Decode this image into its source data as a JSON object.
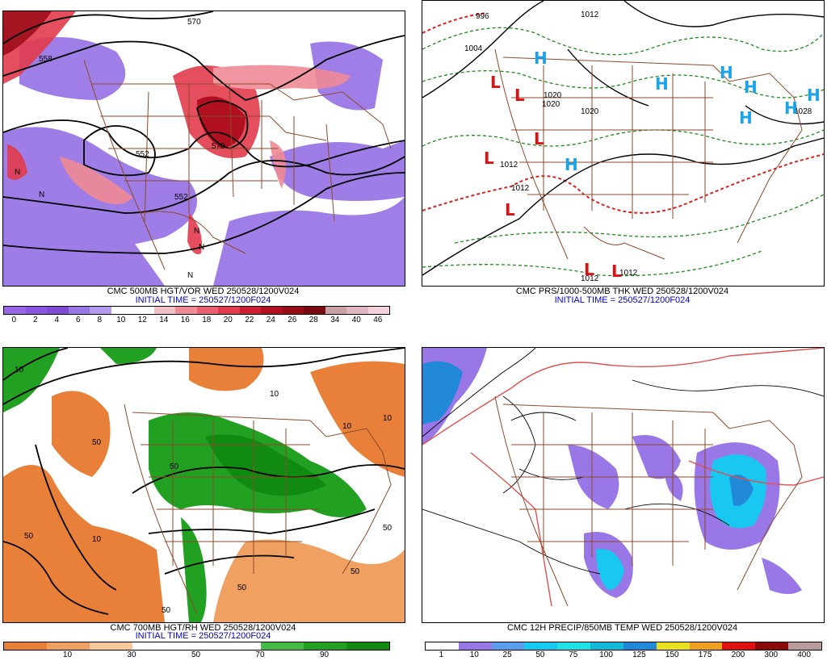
{
  "panels": {
    "top_left": {
      "title": "CMC 500MB HGT/VOR WED 250528/1200V024",
      "init": "INITIAL TIME = 250527/1200F024",
      "contour_labels": [
        "570",
        "558",
        "552",
        "552",
        "570",
        "570"
      ],
      "markers": [
        "N",
        "N",
        "N",
        "N",
        "N"
      ],
      "legend": {
        "ticks": [
          "0",
          "2",
          "4",
          "6",
          "8",
          "10",
          "12",
          "14",
          "16",
          "18",
          "20",
          "22",
          "24",
          "26",
          "28",
          "34",
          "40",
          "46"
        ],
        "colors": [
          "#9a66e8",
          "#8a55de",
          "#7f4bd4",
          "#9a77e6",
          "#b49bef",
          "#ffffff",
          "#ffffff",
          "#f4c0c8",
          "#f08a96",
          "#ec5f6f",
          "#e23b4c",
          "#cc1f31",
          "#b0101f",
          "#9a0c16",
          "#7a0a10",
          "#c9a0a6",
          "#e2b8c0",
          "#f4d0d8"
        ]
      }
    },
    "top_right": {
      "title": "CMC PRS/1000-500MB THK WED 250528/1200V024",
      "init": "INITIAL TIME = 250527/1200F024",
      "isobar_labels": [
        "996",
        "1012",
        "1004",
        "1020",
        "1020",
        "1020",
        "1012",
        "1028",
        "1012",
        "1012",
        "1012"
      ],
      "highs": [
        "H",
        "H",
        "H",
        "H",
        "H",
        "H",
        "H",
        "H"
      ],
      "lows": [
        "L",
        "L",
        "L",
        "L",
        "L",
        "L",
        "L"
      ]
    },
    "bottom_left": {
      "title": "CMC 700MB HGT/RH WED 250528/1200V024",
      "init": "INITIAL TIME = 250527/1200F024",
      "rh_labels": [
        "10",
        "50",
        "50",
        "10",
        "50",
        "10",
        "50",
        "10",
        "50",
        "50",
        "50",
        "10"
      ],
      "legend": {
        "ticks": [
          "10",
          "30",
          "50",
          "70",
          "90"
        ],
        "colors": [
          "#e8803a",
          "#f0a060",
          "#f8c89a",
          "#ffffff",
          "#ffffff",
          "#ffffff",
          "#44bb44",
          "#22a022",
          "#118a11"
        ]
      }
    },
    "bottom_right": {
      "title": "CMC 12H PRECIP/850MB TEMP WED 250528/1200V024",
      "legend": {
        "ticks": [
          "1",
          "10",
          "25",
          "50",
          "75",
          "100",
          "125",
          "150",
          "175",
          "200",
          "300",
          "400"
        ],
        "colors": [
          "#ffffff",
          "#9a77e6",
          "#5a9ef0",
          "#18c8f0",
          "#20e0e8",
          "#14b8d8",
          "#2288d8",
          "#e8e020",
          "#f0a020",
          "#e01010",
          "#8a0a0a",
          "#b89ca0"
        ]
      }
    }
  }
}
